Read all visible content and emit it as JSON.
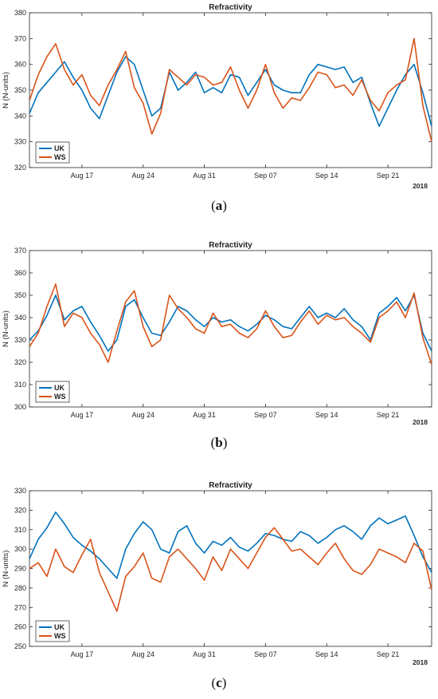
{
  "chart_data": [
    {
      "type": "line",
      "panel_caption": "a",
      "title": "Refractivity",
      "xlabel": "",
      "ylabel": "N (N-units)",
      "ylim": [
        320,
        380
      ],
      "yticks": [
        320,
        330,
        340,
        350,
        360,
        370,
        380
      ],
      "x_range": [
        "2018-08-11",
        "2018-09-26"
      ],
      "x_ticks": [
        {
          "date": "2018-08-17",
          "label": "Aug 17"
        },
        {
          "date": "2018-08-24",
          "label": "Aug 24"
        },
        {
          "date": "2018-08-31",
          "label": "Aug 31"
        },
        {
          "date": "2018-09-07",
          "label": "Sep 07"
        },
        {
          "date": "2018-09-14",
          "label": "Sep 14"
        },
        {
          "date": "2018-09-21",
          "label": "Sep 21"
        }
      ],
      "year_label": "2018",
      "legend": "bottom-left",
      "grid": false,
      "dates": [
        "2018-08-11",
        "2018-08-12",
        "2018-08-13",
        "2018-08-14",
        "2018-08-15",
        "2018-08-16",
        "2018-08-17",
        "2018-08-18",
        "2018-08-19",
        "2018-08-20",
        "2018-08-21",
        "2018-08-22",
        "2018-08-23",
        "2018-08-24",
        "2018-08-25",
        "2018-08-26",
        "2018-08-27",
        "2018-08-28",
        "2018-08-29",
        "2018-08-30",
        "2018-08-31",
        "2018-09-01",
        "2018-09-02",
        "2018-09-03",
        "2018-09-04",
        "2018-09-05",
        "2018-09-06",
        "2018-09-07",
        "2018-09-08",
        "2018-09-09",
        "2018-09-10",
        "2018-09-11",
        "2018-09-12",
        "2018-09-13",
        "2018-09-14",
        "2018-09-15",
        "2018-09-16",
        "2018-09-17",
        "2018-09-18",
        "2018-09-19",
        "2018-09-20",
        "2018-09-21",
        "2018-09-22",
        "2018-09-23",
        "2018-09-24",
        "2018-09-25",
        "2018-09-26"
      ],
      "series": [
        {
          "name": "UK",
          "color": "#0072bd",
          "values": [
            341,
            349,
            353,
            357,
            361,
            355,
            350,
            343,
            339,
            348,
            357,
            363,
            360,
            350,
            340,
            343,
            357,
            350,
            353,
            357,
            349,
            351,
            349,
            356,
            355,
            348,
            353,
            358,
            352,
            350,
            349,
            349,
            356,
            360,
            359,
            358,
            359,
            353,
            355,
            345,
            336,
            343,
            350,
            356,
            360,
            349,
            336
          ]
        },
        {
          "name": "WS",
          "color": "#d95319",
          "values": [
            346,
            356,
            363,
            368,
            358,
            352,
            356,
            348,
            344,
            352,
            358,
            365,
            351,
            345,
            333,
            341,
            358,
            355,
            352,
            356,
            355,
            352,
            353,
            359,
            350,
            343,
            350,
            360,
            349,
            343,
            347,
            346,
            351,
            357,
            356,
            351,
            352,
            348,
            354,
            346,
            342,
            349,
            352,
            354,
            370,
            344,
            330
          ]
        }
      ]
    },
    {
      "type": "line",
      "panel_caption": "b",
      "title": "Refractivity",
      "xlabel": "",
      "ylabel": "N (N-units)",
      "ylim": [
        300,
        370
      ],
      "yticks": [
        300,
        310,
        320,
        330,
        340,
        350,
        360,
        370
      ],
      "x_range": [
        "2018-08-11",
        "2018-09-26"
      ],
      "x_ticks": [
        {
          "date": "2018-08-17",
          "label": "Aug 17"
        },
        {
          "date": "2018-08-24",
          "label": "Aug 24"
        },
        {
          "date": "2018-08-31",
          "label": "Aug 31"
        },
        {
          "date": "2018-09-07",
          "label": "Sep 07"
        },
        {
          "date": "2018-09-14",
          "label": "Sep 14"
        },
        {
          "date": "2018-09-21",
          "label": "Sep 21"
        }
      ],
      "year_label": "2018",
      "legend": "bottom-left",
      "grid": false,
      "dates": [
        "2018-08-11",
        "2018-08-12",
        "2018-08-13",
        "2018-08-14",
        "2018-08-15",
        "2018-08-16",
        "2018-08-17",
        "2018-08-18",
        "2018-08-19",
        "2018-08-20",
        "2018-08-21",
        "2018-08-22",
        "2018-08-23",
        "2018-08-24",
        "2018-08-25",
        "2018-08-26",
        "2018-08-27",
        "2018-08-28",
        "2018-08-29",
        "2018-08-30",
        "2018-08-31",
        "2018-09-01",
        "2018-09-02",
        "2018-09-03",
        "2018-09-04",
        "2018-09-05",
        "2018-09-06",
        "2018-09-07",
        "2018-09-08",
        "2018-09-09",
        "2018-09-10",
        "2018-09-11",
        "2018-09-12",
        "2018-09-13",
        "2018-09-14",
        "2018-09-15",
        "2018-09-16",
        "2018-09-17",
        "2018-09-18",
        "2018-09-19",
        "2018-09-20",
        "2018-09-21",
        "2018-09-22",
        "2018-09-23",
        "2018-09-24",
        "2018-09-25",
        "2018-09-26"
      ],
      "series": [
        {
          "name": "UK",
          "color": "#0072bd",
          "values": [
            330,
            334,
            341,
            350,
            339,
            343,
            345,
            338,
            332,
            325,
            330,
            345,
            348,
            340,
            333,
            332,
            338,
            345,
            343,
            339,
            336,
            340,
            338,
            339,
            336,
            334,
            337,
            341,
            339,
            336,
            335,
            340,
            345,
            340,
            342,
            340,
            344,
            339,
            336,
            330,
            342,
            345,
            349,
            343,
            350,
            333,
            325
          ]
        },
        {
          "name": "WS",
          "color": "#d95319",
          "values": [
            327,
            333,
            345,
            355,
            336,
            342,
            340,
            333,
            328,
            320,
            334,
            347,
            352,
            336,
            327,
            330,
            350,
            344,
            340,
            335,
            333,
            342,
            336,
            337,
            333,
            331,
            335,
            343,
            336,
            331,
            332,
            338,
            343,
            337,
            341,
            339,
            340,
            336,
            333,
            329,
            340,
            343,
            347,
            340,
            351,
            331,
            319
          ]
        }
      ]
    },
    {
      "type": "line",
      "panel_caption": "c",
      "title": "Refractivity",
      "xlabel": "",
      "ylabel": "N (N-units)",
      "ylim": [
        250,
        330
      ],
      "yticks": [
        250,
        260,
        270,
        280,
        290,
        300,
        310,
        320,
        330
      ],
      "x_range": [
        "2018-08-11",
        "2018-09-26"
      ],
      "x_ticks": [
        {
          "date": "2018-08-17",
          "label": "Aug 17"
        },
        {
          "date": "2018-08-24",
          "label": "Aug 24"
        },
        {
          "date": "2018-08-31",
          "label": "Aug 31"
        },
        {
          "date": "2018-09-07",
          "label": "Sep 07"
        },
        {
          "date": "2018-09-14",
          "label": "Sep 14"
        },
        {
          "date": "2018-09-21",
          "label": "Sep 21"
        }
      ],
      "year_label": "2018",
      "legend": "bottom-left",
      "grid": false,
      "dates": [
        "2018-08-11",
        "2018-08-12",
        "2018-08-13",
        "2018-08-14",
        "2018-08-15",
        "2018-08-16",
        "2018-08-17",
        "2018-08-18",
        "2018-08-19",
        "2018-08-20",
        "2018-08-21",
        "2018-08-22",
        "2018-08-23",
        "2018-08-24",
        "2018-08-25",
        "2018-08-26",
        "2018-08-27",
        "2018-08-28",
        "2018-08-29",
        "2018-08-30",
        "2018-08-31",
        "2018-09-01",
        "2018-09-02",
        "2018-09-03",
        "2018-09-04",
        "2018-09-05",
        "2018-09-06",
        "2018-09-07",
        "2018-09-08",
        "2018-09-09",
        "2018-09-10",
        "2018-09-11",
        "2018-09-12",
        "2018-09-13",
        "2018-09-14",
        "2018-09-15",
        "2018-09-16",
        "2018-09-17",
        "2018-09-18",
        "2018-09-19",
        "2018-09-20",
        "2018-09-21",
        "2018-09-22",
        "2018-09-23",
        "2018-09-24",
        "2018-09-25",
        "2018-09-26"
      ],
      "series": [
        {
          "name": "UK",
          "color": "#0072bd",
          "values": [
            295,
            305,
            311,
            319,
            313,
            306,
            302,
            299,
            295,
            290,
            285,
            300,
            308,
            314,
            310,
            300,
            298,
            309,
            312,
            303,
            298,
            304,
            302,
            306,
            301,
            299,
            303,
            308,
            307,
            305,
            304,
            309,
            307,
            303,
            306,
            310,
            312,
            309,
            305,
            312,
            316,
            313,
            315,
            317,
            307,
            296,
            288
          ]
        },
        {
          "name": "WS",
          "color": "#d95319",
          "values": [
            290,
            293,
            286,
            300,
            291,
            288,
            297,
            305,
            288,
            278,
            268,
            286,
            291,
            298,
            285,
            283,
            296,
            300,
            295,
            290,
            284,
            296,
            289,
            300,
            295,
            290,
            298,
            306,
            311,
            305,
            299,
            300,
            296,
            292,
            298,
            303,
            295,
            289,
            287,
            292,
            300,
            298,
            296,
            293,
            303,
            299,
            279
          ]
        }
      ]
    }
  ]
}
